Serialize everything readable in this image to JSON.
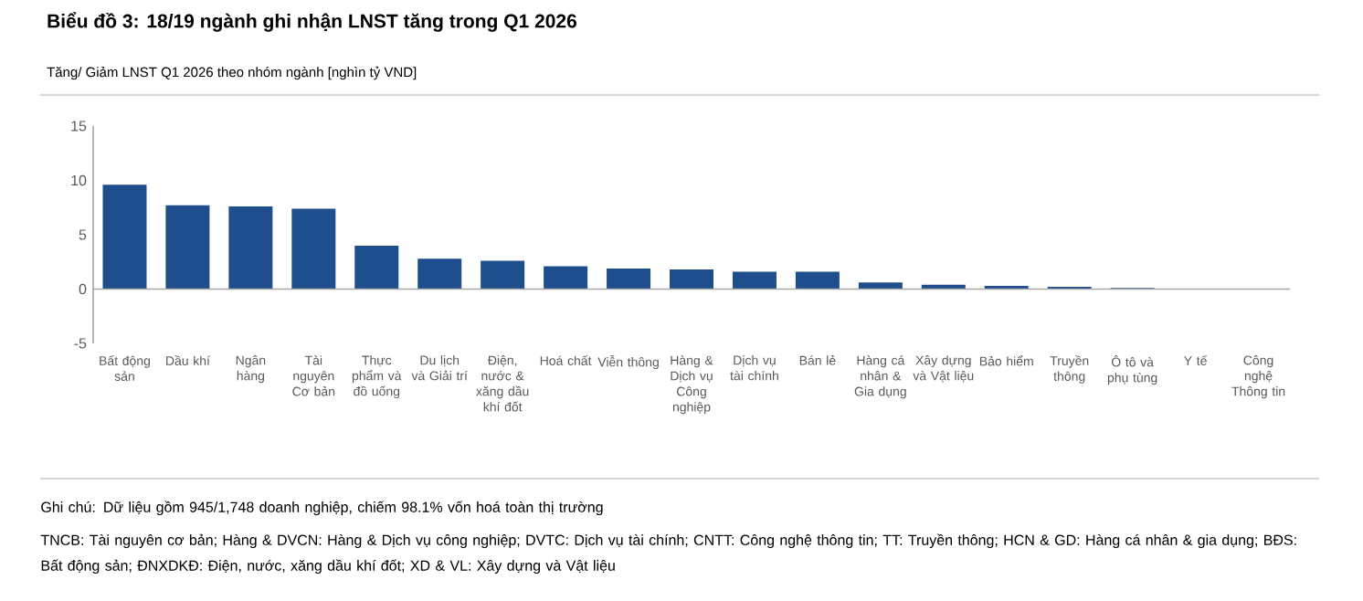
{
  "chart_data": {
    "type": "bar",
    "title": "Biểu đồ 3: 18/19 ngành ghi nhận LNST tăng trong Q1 2026",
    "subtitle": "Tăng/ Giảm LNST Q1 2026 theo nhóm ngành [nghìn tỷ VND]",
    "categories": [
      "Bất động sản",
      "Dầu khí",
      "Ngân hàng",
      "Tài nguyên Cơ bản",
      "Thực phẩm và đồ uống",
      "Du lịch và Giải trí",
      "Điện, nước & xăng dầu khí đốt",
      "Hoá chất",
      "Viễn thông",
      "Hàng & Dịch vụ Công nghiệp",
      "Dịch vụ tài chính",
      "Bán lẻ",
      "Hàng cá nhân & Gia dụng",
      "Xây dựng và Vật liệu",
      "Bảo hiểm",
      "Truyền thông",
      "Ô tô và phụ tùng",
      "Y tế",
      "Công nghệ Thông tin"
    ],
    "values": [
      9.6,
      7.7,
      7.6,
      7.4,
      4.0,
      2.8,
      2.6,
      2.1,
      1.9,
      1.8,
      1.6,
      1.6,
      0.6,
      0.4,
      0.3,
      0.2,
      0.1,
      null,
      null
    ],
    "color": "#1f4e8c",
    "ylim": [
      -5,
      15
    ],
    "yticks": [
      -5,
      0,
      5,
      10,
      15
    ],
    "annotations": [
      "Ghi chú: Dữ liệu gồm 945/1,748 doanh nghiệp, chiếm 98.1% vốn hoá toàn thị trường",
      "TNCB: Tài nguyên cơ bản; Hàng & DVCN: Hàng & Dịch vụ công nghiệp; DVTC: Dịch vụ tài chính; CNTT: Công nghệ thông tin; TT: Truyền thông; HCN & GD: Hàng cá nhân & gia dụng; BĐS: Bất động sản; ĐNXDKĐ: Điện, nước, xăng dầu khí đốt; XD & VL: Xây dựng và Vật liệu"
    ]
  }
}
